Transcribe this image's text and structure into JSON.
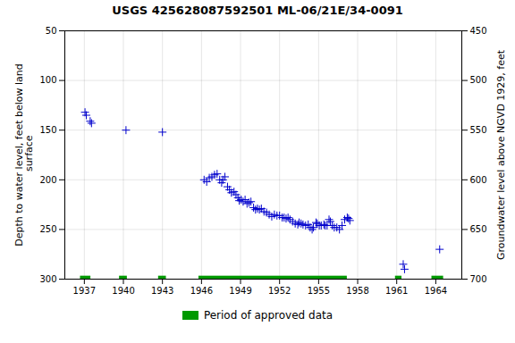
{
  "chart_data": {
    "type": "scatter",
    "title": "USGS 425628087592501 ML-06/21E/34-0091",
    "ylabel": "Depth to water level, feet below land\n surface",
    "y2label": "Groundwater level above NGVD 1929, feet",
    "xlim": [
      1935.5,
      1966.0
    ],
    "xticks": [
      1937,
      1940,
      1943,
      1946,
      1949,
      1952,
      1955,
      1958,
      1961,
      1964
    ],
    "ylim": [
      300,
      50
    ],
    "yticks": [
      50,
      100,
      150,
      200,
      250,
      300
    ],
    "y2lim": [
      700,
      450
    ],
    "y2ticks": [
      700,
      650,
      600,
      550,
      500,
      450
    ],
    "grid": true,
    "legend": "bottom",
    "series": [
      {
        "type": "scatter",
        "marker": "plus",
        "color": "#0000cc",
        "x": [
          1937.05,
          1937.15,
          1937.45,
          1937.55,
          1940.2,
          1943.0,
          1946.2,
          1946.4,
          1946.6,
          1946.8,
          1947.0,
          1947.2,
          1947.4,
          1947.55,
          1947.65,
          1947.8,
          1948.0,
          1948.15,
          1948.3,
          1948.5,
          1948.65,
          1948.8,
          1948.9,
          1949.05,
          1949.2,
          1949.35,
          1949.5,
          1949.65,
          1949.8,
          1950.0,
          1950.15,
          1950.3,
          1950.45,
          1950.6,
          1950.8,
          1951.0,
          1951.2,
          1951.4,
          1951.6,
          1951.8,
          1952.0,
          1952.2,
          1952.35,
          1952.5,
          1952.65,
          1952.8,
          1953.0,
          1953.2,
          1953.4,
          1953.5,
          1953.65,
          1953.8,
          1954.0,
          1954.2,
          1954.35,
          1954.5,
          1954.6,
          1954.8,
          1954.9,
          1955.05,
          1955.2,
          1955.4,
          1955.5,
          1955.65,
          1955.8,
          1955.9,
          1956.05,
          1956.2,
          1956.4,
          1956.6,
          1956.8,
          1957.0,
          1957.2,
          1957.3,
          1957.4,
          1961.5,
          1961.6,
          1964.3
        ],
        "values": [
          132,
          135,
          141,
          143,
          150,
          152,
          200,
          202,
          198,
          197,
          195,
          194,
          200,
          203,
          200,
          197,
          207,
          210,
          213,
          212,
          215,
          218,
          221,
          220,
          222,
          220,
          224,
          223,
          222,
          228,
          230,
          229,
          230,
          229,
          232,
          233,
          235,
          237,
          235,
          236,
          236,
          238,
          238,
          239,
          238,
          240,
          242,
          244,
          245,
          243,
          244,
          245,
          246,
          245,
          248,
          250,
          248,
          243,
          244,
          246,
          246,
          245,
          246,
          246,
          240,
          242,
          246,
          248,
          248,
          250,
          246,
          240,
          238,
          239,
          241,
          285,
          290,
          270
        ]
      },
      {
        "type": "bar",
        "name": "Period of approved data",
        "color": "#009900",
        "periods": [
          [
            1936.7,
            1937.5
          ],
          [
            1939.7,
            1940.3
          ],
          [
            1942.7,
            1943.3
          ],
          [
            1945.8,
            1957.2
          ],
          [
            1960.9,
            1961.4
          ],
          [
            1963.7,
            1964.6
          ]
        ],
        "band": [
          297,
          303
        ]
      }
    ]
  }
}
